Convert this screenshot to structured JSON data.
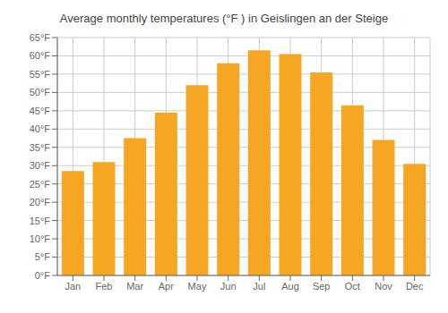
{
  "chart_data": {
    "type": "bar",
    "title": "Average monthly temperatures (°F ) in Geislingen an der Steige",
    "categories": [
      "Jan",
      "Feb",
      "Mar",
      "Apr",
      "May",
      "Jun",
      "Jul",
      "Aug",
      "Sep",
      "Oct",
      "Nov",
      "Dec"
    ],
    "values": [
      28.5,
      31.0,
      37.5,
      44.5,
      52.0,
      58.0,
      61.5,
      60.5,
      55.5,
      46.5,
      37.0,
      30.5
    ],
    "color": "#F5A623",
    "ylim": [
      0,
      65
    ],
    "yticks": [
      {
        "value": 0,
        "label": "0°F"
      },
      {
        "value": 5,
        "label": "5°F"
      },
      {
        "value": 10,
        "label": "10°F"
      },
      {
        "value": 15,
        "label": "15°F"
      },
      {
        "value": 20,
        "label": "20°F"
      },
      {
        "value": 25,
        "label": "25°F"
      },
      {
        "value": 30,
        "label": "30°F"
      },
      {
        "value": 35,
        "label": "35°F"
      },
      {
        "value": 40,
        "label": "40°F"
      },
      {
        "value": 45,
        "label": "45°F"
      },
      {
        "value": 50,
        "label": "50°F"
      },
      {
        "value": 55,
        "label": "55°F"
      },
      {
        "value": 60,
        "label": "60°F"
      },
      {
        "value": 65,
        "label": "65°F"
      }
    ],
    "grid": true
  }
}
